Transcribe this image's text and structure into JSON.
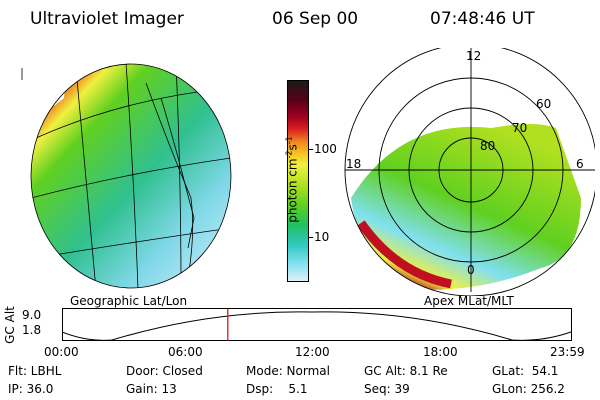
{
  "header": {
    "title": "Ultraviolet Imager",
    "date": "06 Sep 00",
    "time": "07:48:46 UT"
  },
  "colorbar": {
    "label": "photon cm",
    "label_exp1": "-2",
    "label_mid": "s",
    "label_exp2": "-1",
    "ticks": [
      "100",
      "10"
    ],
    "colors": [
      "#1a1a1a",
      "#5a0018",
      "#a00020",
      "#d82020",
      "#f08020",
      "#f8c020",
      "#f0f040",
      "#b0e020",
      "#60d020",
      "#20c060",
      "#30c8c0",
      "#80e0f0",
      "#e0f0f8"
    ]
  },
  "geo_panel": {
    "caption": "Geographic Lat/Lon"
  },
  "polar_panel": {
    "caption": "Apex MLat/MLT",
    "mlt_labels": {
      "top": "12",
      "left": "18",
      "right": "6",
      "bottom": "0"
    },
    "lat_labels": [
      "60",
      "70",
      "80"
    ]
  },
  "timeline": {
    "ylabel": "GC Alt",
    "yticks": [
      "9.0",
      "1.8"
    ],
    "xticks": [
      "00:00",
      "06:00",
      "12:00",
      "18:00",
      "23:59"
    ],
    "marker_time_hours": 7.81
  },
  "info": {
    "row1": {
      "flt": "Flt: LBHL",
      "door": "Door: Closed",
      "mode": "Mode: Normal",
      "gcalt": "GC Alt: 8.1 Re",
      "glat": "GLat:  54.1"
    },
    "row2": {
      "ip": "IP: 36.0",
      "gain": "Gain: 13",
      "dsp": "Dsp:    5.1",
      "seq": "Seq: 39",
      "glon": "GLon: 256.2"
    }
  }
}
